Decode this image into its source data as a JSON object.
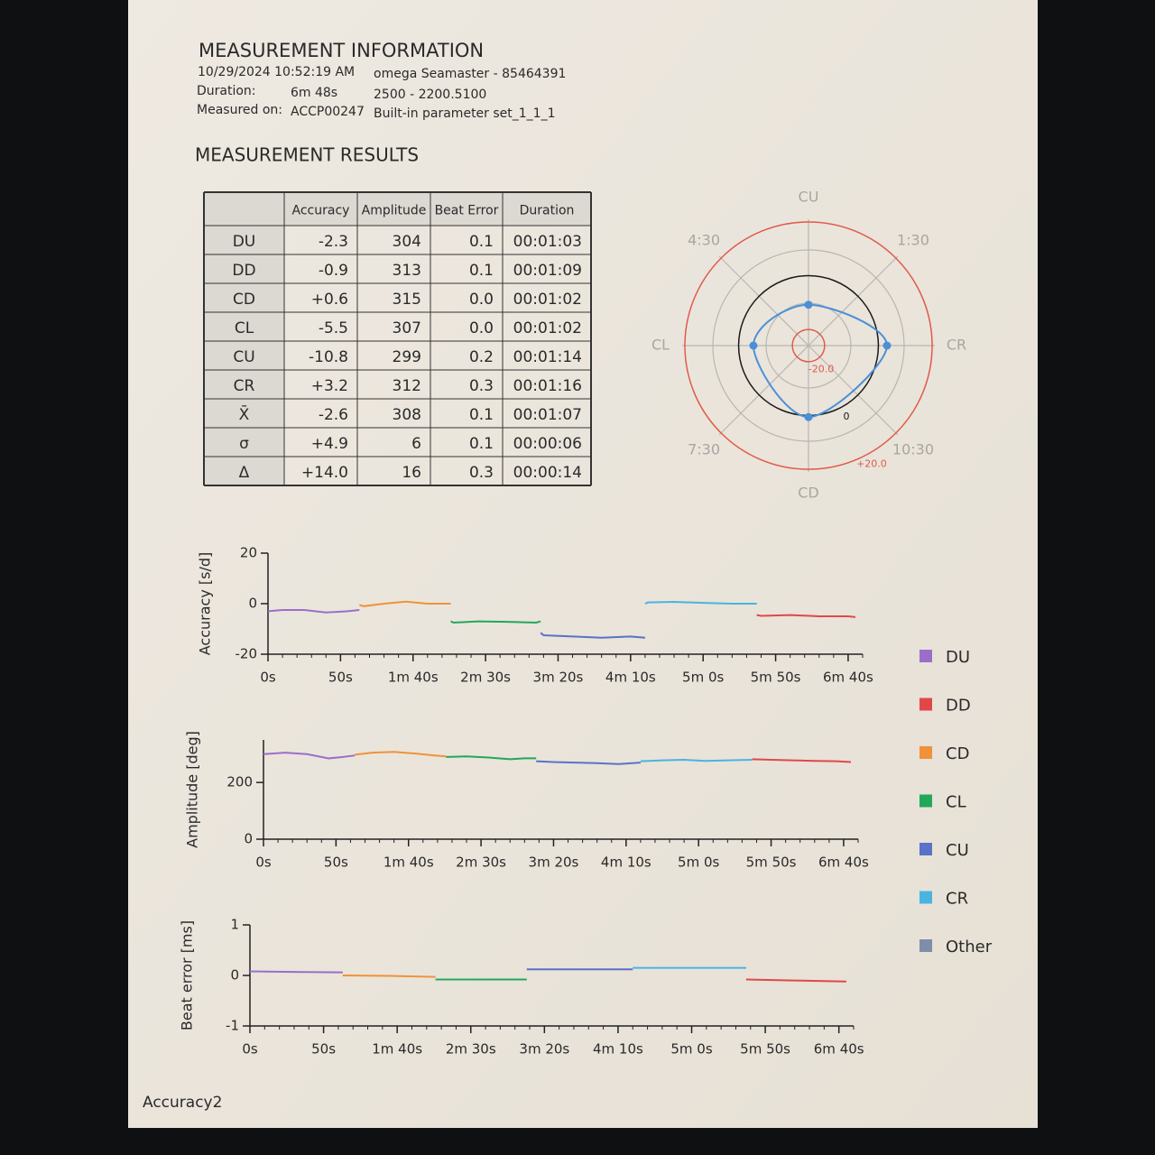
{
  "info": {
    "title": "MEASUREMENT INFORMATION",
    "rows": [
      [
        "10/29/2024 10:52:19 AM",
        "omega Seamaster - 85464391"
      ],
      [
        "Duration:",
        "6m 48s",
        "2500 - 2200.5100"
      ],
      [
        "Measured on:",
        "ACCP00247",
        "Built-in parameter set_1_1_1"
      ]
    ]
  },
  "results": {
    "title": "MEASUREMENT RESULTS",
    "table": {
      "header": [
        "Accuracy",
        "Amplitude",
        "Beat Error",
        "Duration"
      ],
      "rows": [
        [
          "DU",
          "-2.3",
          "304",
          "0.1",
          "00:01:03"
        ],
        [
          "DD",
          "-0.9",
          "313",
          "0.1",
          "00:01:09"
        ],
        [
          "CD",
          "+0.6",
          "315",
          "0.0",
          "00:01:02"
        ],
        [
          "CL",
          "-5.5",
          "307",
          "0.0",
          "00:01:02"
        ],
        [
          "CU",
          "-10.8",
          "299",
          "0.2",
          "00:01:14"
        ],
        [
          "CR",
          "+3.2",
          "312",
          "0.3",
          "00:01:16"
        ],
        [
          "X̄",
          "-2.6",
          "308",
          "0.1",
          "00:01:07"
        ],
        [
          "σ",
          "+4.9",
          "6",
          "0.1",
          "00:00:06"
        ],
        [
          "Δ",
          "+14.0",
          "16",
          "0.3",
          "00:00:14"
        ]
      ]
    }
  },
  "chart_data": [
    {
      "type": "polar",
      "axis_labels": [
        "CU",
        "1:30",
        "CR",
        "10:30",
        "CD",
        "7:30",
        "CL",
        "4:30"
      ],
      "rlim": [
        -26,
        21
      ],
      "rticks": [
        {
          "value": -20,
          "label": "-20.0"
        },
        0,
        {
          "value": 20,
          "label": "+20.0"
        }
      ],
      "rtick_colors": [
        "#e05a4a",
        "#1a1a1a",
        "#e05a4a"
      ],
      "values": [
        -10.8,
        null,
        3.2,
        null,
        0.6,
        null,
        -5.5,
        null
      ],
      "color": "#4a90d8"
    },
    {
      "type": "line",
      "ylabel": "Accuracy [s/d]",
      "xlim": [
        0,
        410
      ],
      "ylim": [
        -20,
        20
      ],
      "yticks": [
        -20,
        0,
        20
      ],
      "xticks": [
        {
          "value": 0,
          "label": "0s"
        },
        {
          "value": 50,
          "label": "50s"
        },
        {
          "value": 100,
          "label": "1m 40s"
        },
        {
          "value": 150,
          "label": "2m 30s"
        },
        {
          "value": 200,
          "label": "3m 20s"
        },
        {
          "value": 250,
          "label": "4m 10s"
        },
        {
          "value": 300,
          "label": "5m 0s"
        },
        {
          "value": 350,
          "label": "5m 50s"
        },
        {
          "value": 400,
          "label": "6m 40s"
        }
      ],
      "series": [
        {
          "name": "DU",
          "color": "#9b6fc8",
          "x": [
            0,
            10,
            25,
            40,
            55,
            63
          ],
          "values": [
            -3,
            -2.5,
            -2.5,
            -3.5,
            -3,
            -2.5
          ]
        },
        {
          "name": "CD",
          "color": "#f0923a",
          "x": [
            63,
            66,
            80,
            95,
            110,
            126
          ],
          "values": [
            -0.5,
            -1,
            0,
            0.8,
            0,
            0
          ]
        },
        {
          "name": "CL",
          "color": "#22a85a",
          "x": [
            126,
            128,
            145,
            165,
            185,
            188
          ],
          "values": [
            -7,
            -7.5,
            -7,
            -7.2,
            -7.5,
            -7
          ]
        },
        {
          "name": "CU",
          "color": "#5a72c8",
          "x": [
            188,
            190,
            210,
            230,
            250,
            260
          ],
          "values": [
            -11.5,
            -12.5,
            -13,
            -13.5,
            -13,
            -13.5
          ]
        },
        {
          "name": "CR",
          "color": "#4ab4e0",
          "x": [
            260,
            262,
            280,
            300,
            320,
            337
          ],
          "values": [
            0,
            0.5,
            0.7,
            0.3,
            0,
            0
          ]
        },
        {
          "name": "DD",
          "color": "#e04848",
          "x": [
            337,
            340,
            360,
            380,
            400,
            405
          ],
          "values": [
            -4.5,
            -4.8,
            -4.5,
            -5,
            -5,
            -5.3
          ]
        }
      ]
    },
    {
      "type": "line",
      "ylabel": "Amplitude [deg]",
      "xlim": [
        0,
        410
      ],
      "ylim": [
        0,
        350
      ],
      "yticks": [
        0,
        200
      ],
      "xticks": [
        {
          "value": 0,
          "label": "0s"
        },
        {
          "value": 50,
          "label": "50s"
        },
        {
          "value": 100,
          "label": "1m 40s"
        },
        {
          "value": 150,
          "label": "2m 30s"
        },
        {
          "value": 200,
          "label": "3m 20s"
        },
        {
          "value": 250,
          "label": "4m 10s"
        },
        {
          "value": 300,
          "label": "5m 0s"
        },
        {
          "value": 350,
          "label": "5m 50s"
        },
        {
          "value": 400,
          "label": "6m 40s"
        }
      ],
      "series": [
        {
          "name": "DU",
          "color": "#9b6fc8",
          "x": [
            0,
            15,
            30,
            45,
            55,
            63
          ],
          "values": [
            300,
            305,
            300,
            285,
            290,
            295
          ]
        },
        {
          "name": "CD",
          "color": "#f0923a",
          "x": [
            63,
            75,
            90,
            105,
            118,
            126
          ],
          "values": [
            298,
            305,
            308,
            302,
            295,
            292
          ]
        },
        {
          "name": "CL",
          "color": "#22a85a",
          "x": [
            126,
            140,
            155,
            170,
            180,
            188
          ],
          "values": [
            290,
            292,
            288,
            282,
            285,
            285
          ]
        },
        {
          "name": "CU",
          "color": "#5a72c8",
          "x": [
            188,
            200,
            215,
            230,
            245,
            260
          ],
          "values": [
            275,
            272,
            270,
            268,
            265,
            270
          ]
        },
        {
          "name": "CR",
          "color": "#4ab4e0",
          "x": [
            260,
            275,
            290,
            305,
            320,
            337
          ],
          "values": [
            275,
            278,
            280,
            276,
            278,
            280
          ]
        },
        {
          "name": "DD",
          "color": "#e04848",
          "x": [
            337,
            350,
            365,
            380,
            395,
            405
          ],
          "values": [
            282,
            280,
            278,
            276,
            275,
            272
          ]
        }
      ]
    },
    {
      "type": "line",
      "ylabel": "Beat error [ms]",
      "xlim": [
        0,
        410
      ],
      "ylim": [
        -1,
        1
      ],
      "yticks": [
        -1,
        0,
        1
      ],
      "xticks": [
        {
          "value": 0,
          "label": "0s"
        },
        {
          "value": 50,
          "label": "50s"
        },
        {
          "value": 100,
          "label": "1m 40s"
        },
        {
          "value": 150,
          "label": "2m 30s"
        },
        {
          "value": 200,
          "label": "3m 20s"
        },
        {
          "value": 250,
          "label": "4m 10s"
        },
        {
          "value": 300,
          "label": "5m 0s"
        },
        {
          "value": 350,
          "label": "5m 50s"
        },
        {
          "value": 400,
          "label": "6m 40s"
        }
      ],
      "series": [
        {
          "name": "DU",
          "color": "#9b6fc8",
          "x": [
            0,
            30,
            63
          ],
          "values": [
            0.08,
            0.07,
            0.06
          ]
        },
        {
          "name": "CD",
          "color": "#f0923a",
          "x": [
            63,
            95,
            126
          ],
          "values": [
            0.0,
            -0.01,
            -0.03
          ]
        },
        {
          "name": "CL",
          "color": "#22a85a",
          "x": [
            126,
            160,
            188
          ],
          "values": [
            -0.08,
            -0.08,
            -0.08
          ]
        },
        {
          "name": "CU",
          "color": "#5a72c8",
          "x": [
            188,
            225,
            260
          ],
          "values": [
            0.12,
            0.12,
            0.12
          ]
        },
        {
          "name": "CR",
          "color": "#4ab4e0",
          "x": [
            260,
            300,
            337
          ],
          "values": [
            0.15,
            0.15,
            0.15
          ]
        },
        {
          "name": "DD",
          "color": "#e04848",
          "x": [
            337,
            370,
            405
          ],
          "values": [
            -0.08,
            -0.1,
            -0.12
          ]
        }
      ]
    }
  ],
  "legend": [
    {
      "name": "DU",
      "color": "#9b6fc8"
    },
    {
      "name": "DD",
      "color": "#e04848"
    },
    {
      "name": "CD",
      "color": "#f0923a"
    },
    {
      "name": "CL",
      "color": "#22a85a"
    },
    {
      "name": "CU",
      "color": "#5a72c8"
    },
    {
      "name": "CR",
      "color": "#4ab4e0"
    },
    {
      "name": "Other",
      "color": "#7f8ea8"
    }
  ],
  "footer": "Accuracy2"
}
